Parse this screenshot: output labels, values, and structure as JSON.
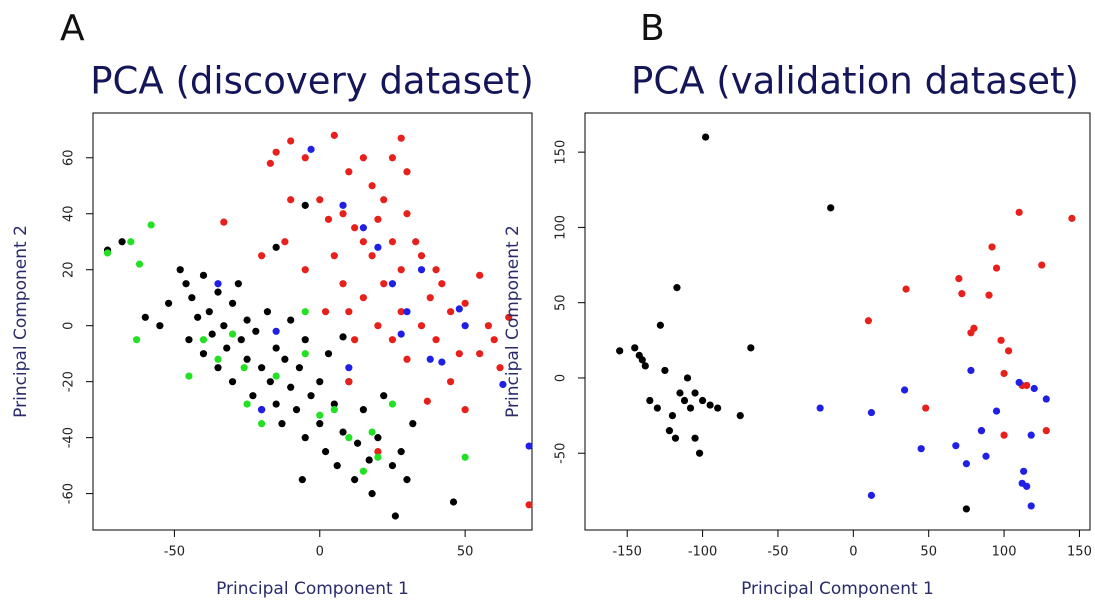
{
  "chart_data": [
    {
      "type": "scatter",
      "label": "A",
      "title": "PCA (discovery dataset)",
      "x_label": "Principal Component 1",
      "y_label": "Principal Component 2",
      "xlim": [
        -78,
        73
      ],
      "ylim": [
        -73,
        76
      ],
      "xticks": [
        -50,
        0,
        50
      ],
      "yticks": [
        -60,
        -40,
        -20,
        0,
        20,
        40,
        60
      ],
      "series": [
        {
          "color": "#000000",
          "x": [
            -73,
            -68,
            -60,
            -55,
            -52,
            -48,
            -46,
            -45,
            -44,
            -42,
            -40,
            -40,
            -38,
            -37,
            -35,
            -35,
            -33,
            -32,
            -30,
            -30,
            -28,
            -27,
            -25,
            -25,
            -23,
            -22,
            -20,
            -20,
            -18,
            -17,
            -15,
            -15,
            -13,
            -12,
            -10,
            -10,
            -8,
            -7,
            -5,
            -5,
            -3,
            0,
            0,
            2,
            3,
            5,
            6,
            8,
            10,
            12,
            13,
            15,
            17,
            18,
            20,
            22,
            25,
            26,
            28,
            30,
            32,
            46,
            -5,
            8,
            -15,
            -6
          ],
          "values": [
            27,
            30,
            3,
            0,
            8,
            20,
            15,
            -5,
            10,
            3,
            18,
            -10,
            5,
            -3,
            12,
            -15,
            0,
            -8,
            8,
            -20,
            15,
            -5,
            -12,
            2,
            -25,
            -2,
            -15,
            -30,
            5,
            -20,
            -8,
            -28,
            -35,
            -12,
            -22,
            2,
            -30,
            -15,
            -40,
            -5,
            -25,
            -20,
            -35,
            -45,
            -10,
            -28,
            -50,
            -38,
            -20,
            -55,
            -42,
            -30,
            -48,
            -60,
            -40,
            -25,
            -50,
            -68,
            -45,
            -55,
            -35,
            -63,
            43,
            -4,
            28,
            -55
          ]
        },
        {
          "color": "#e8201c",
          "x": [
            -17,
            -15,
            -10,
            -5,
            5,
            10,
            15,
            18,
            22,
            28,
            30,
            0,
            3,
            8,
            12,
            15,
            18,
            20,
            25,
            28,
            30,
            33,
            5,
            8,
            10,
            12,
            15,
            20,
            22,
            25,
            28,
            30,
            35,
            38,
            40,
            42,
            45,
            48,
            50,
            55,
            58,
            60,
            62,
            65,
            55,
            -33,
            -20,
            -12,
            -5,
            2,
            37,
            50,
            72,
            10,
            20,
            35,
            40,
            45,
            -10,
            25
          ],
          "values": [
            58,
            62,
            66,
            60,
            68,
            55,
            60,
            50,
            45,
            67,
            55,
            45,
            38,
            40,
            35,
            30,
            25,
            38,
            30,
            20,
            40,
            30,
            25,
            15,
            5,
            -5,
            10,
            0,
            15,
            -5,
            5,
            -12,
            0,
            10,
            -5,
            15,
            5,
            -10,
            8,
            18,
            0,
            -5,
            -15,
            3,
            -10,
            37,
            25,
            30,
            20,
            5,
            -27,
            -30,
            -64,
            -20,
            -45,
            25,
            20,
            -20,
            45,
            60
          ]
        },
        {
          "color": "#22e022",
          "x": [
            -73,
            -65,
            -58,
            -62,
            -63,
            -45,
            -40,
            -35,
            -30,
            -26,
            -25,
            -20,
            -15,
            -5,
            -5,
            0,
            5,
            10,
            15,
            20,
            25,
            50,
            18
          ],
          "values": [
            26,
            30,
            36,
            22,
            -5,
            -18,
            -5,
            -12,
            -3,
            -15,
            -28,
            -35,
            -18,
            -10,
            5,
            -32,
            -30,
            -40,
            -52,
            -47,
            -28,
            -47,
            -38
          ]
        },
        {
          "color": "#1f1fe6",
          "x": [
            -35,
            -3,
            8,
            15,
            20,
            25,
            28,
            30,
            35,
            38,
            42,
            48,
            50,
            63,
            72,
            -20,
            -15,
            10
          ],
          "values": [
            15,
            63,
            43,
            35,
            28,
            15,
            -3,
            5,
            20,
            -12,
            -13,
            6,
            0,
            -21,
            -43,
            -30,
            -2,
            -15
          ]
        }
      ]
    },
    {
      "type": "scatter",
      "label": "B",
      "title": "PCA (validation dataset)",
      "x_label": "Principal Component 1",
      "y_label": "Principal Component 2",
      "xlim": [
        -178,
        157
      ],
      "ylim": [
        -101,
        176
      ],
      "xticks": [
        -150,
        -100,
        -50,
        0,
        50,
        100,
        150
      ],
      "yticks": [
        -50,
        0,
        50,
        100,
        150
      ],
      "series": [
        {
          "color": "#000000",
          "x": [
            -155,
            -145,
            -142,
            -140,
            -138,
            -130,
            -128,
            -125,
            -122,
            -118,
            -117,
            -115,
            -112,
            -110,
            -108,
            -105,
            -102,
            -100,
            -98,
            -95,
            -90,
            -75,
            -68,
            -15,
            75,
            -135,
            -120,
            -105
          ],
          "values": [
            18,
            20,
            15,
            12,
            8,
            -20,
            35,
            5,
            -35,
            -40,
            60,
            -10,
            -15,
            0,
            -20,
            -40,
            -50,
            -15,
            160,
            -18,
            -20,
            -25,
            20,
            113,
            -87,
            -15,
            -25,
            -10
          ]
        },
        {
          "color": "#e8201c",
          "x": [
            10,
            35,
            48,
            70,
            72,
            78,
            80,
            85,
            90,
            92,
            95,
            98,
            100,
            103,
            110,
            112,
            115,
            125,
            128,
            145,
            100
          ],
          "values": [
            38,
            59,
            -20,
            66,
            56,
            30,
            33,
            -35,
            55,
            87,
            73,
            25,
            3,
            18,
            110,
            -5,
            -5,
            75,
            -35,
            106,
            -38
          ]
        },
        {
          "color": "#1f1fe6",
          "x": [
            -22,
            12,
            12,
            34,
            45,
            68,
            75,
            78,
            85,
            88,
            95,
            110,
            113,
            115,
            118,
            118,
            120,
            128,
            112
          ],
          "values": [
            -20,
            -23,
            -78,
            -8,
            -47,
            -45,
            -57,
            5,
            -35,
            -52,
            -22,
            -3,
            -62,
            -72,
            -85,
            -38,
            -7,
            -14,
            -70
          ]
        }
      ]
    }
  ]
}
